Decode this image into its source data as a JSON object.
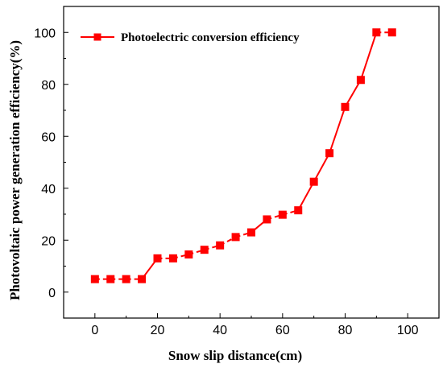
{
  "chart_data": {
    "type": "line",
    "xlabel": "Snow slip distance(cm)",
    "ylabel": "Photovoltaic power generation efficiency(%)",
    "xlim": [
      -10,
      110
    ],
    "ylim": [
      -10,
      110
    ],
    "x_ticks": [
      0,
      20,
      40,
      60,
      80,
      100
    ],
    "y_ticks": [
      0,
      20,
      40,
      60,
      80,
      100
    ],
    "grid": false,
    "legend_position": "top-left",
    "series": [
      {
        "name": "Photoelectric conversion efficiency",
        "color": "#ff0000",
        "marker": "square",
        "x": [
          0,
          5,
          10,
          15,
          20,
          25,
          30,
          35,
          40,
          45,
          50,
          55,
          60,
          65,
          70,
          75,
          80,
          85,
          90,
          95
        ],
        "y": [
          5,
          5,
          5,
          5,
          13,
          13,
          14.5,
          16.3,
          18,
          21.2,
          23,
          28,
          29.8,
          31.5,
          42.5,
          53.5,
          71.3,
          81.7,
          100,
          100
        ],
        "line_style": [
          "dashed",
          "dashed",
          "dashed",
          "solid",
          "dashed",
          "dashed",
          "dashed",
          "dashed",
          "dashed",
          "dashed",
          "solid",
          "dashed",
          "dashed",
          "solid",
          "solid",
          "solid",
          "solid",
          "solid",
          "dashed"
        ]
      }
    ]
  }
}
